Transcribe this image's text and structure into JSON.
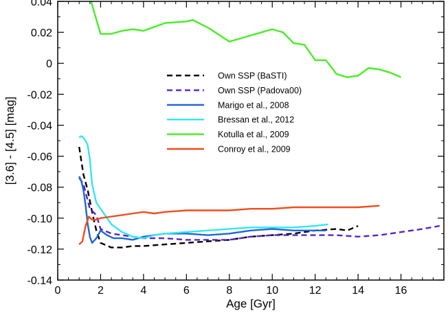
{
  "chart_data": {
    "type": "line",
    "title": "",
    "xlabel": "Age [Gyr]",
    "ylabel": "[3.6] - [4.5] [mag]",
    "xlim": [
      0,
      18
    ],
    "ylim": [
      -0.14,
      0.04
    ],
    "x_ticks": [
      0,
      2,
      4,
      6,
      8,
      10,
      12,
      14,
      16
    ],
    "x_tick_labels": [
      "0",
      "2",
      "4",
      "6",
      "8",
      "10",
      "12",
      "14",
      "16"
    ],
    "y_ticks": [
      -0.14,
      -0.12,
      -0.1,
      -0.08,
      -0.06,
      -0.04,
      -0.02,
      0,
      0.02,
      0.04
    ],
    "y_tick_labels": [
      "-0.14",
      "-0.12",
      "-0.10",
      "-0.08",
      "-0.06",
      "-0.04",
      "-0.02",
      "0",
      "0.02",
      "0.04"
    ],
    "grid": false,
    "legend_position": "center",
    "series": [
      {
        "name": "Own SSP (BaSTI)",
        "color": "#000000",
        "dash": "dashed",
        "x": [
          1.0,
          1.2,
          1.4,
          1.6,
          1.8,
          2.0,
          2.5,
          3.0,
          3.5,
          4.0,
          5.0,
          6.0,
          7.0,
          8.0,
          9.0,
          10.0,
          11.0,
          12.0,
          13.0,
          13.5,
          14.0
        ],
        "y": [
          -0.054,
          -0.072,
          -0.082,
          -0.096,
          -0.108,
          -0.116,
          -0.119,
          -0.119,
          -0.118,
          -0.118,
          -0.117,
          -0.116,
          -0.115,
          -0.114,
          -0.112,
          -0.111,
          -0.11,
          -0.108,
          -0.107,
          -0.108,
          -0.105
        ]
      },
      {
        "name": "Own SSP (Padova00)",
        "color": "#5522cc",
        "dash": "dashed",
        "x": [
          1.0,
          1.2,
          1.5,
          1.8,
          2.0,
          2.5,
          3.0,
          4.0,
          5.0,
          6.0,
          7.0,
          8.0,
          9.0,
          10.0,
          11.0,
          12.0,
          13.0,
          14.0,
          15.0,
          16.0,
          17.0,
          17.8
        ],
        "y": [
          -0.074,
          -0.078,
          -0.094,
          -0.098,
          -0.107,
          -0.11,
          -0.111,
          -0.113,
          -0.113,
          -0.114,
          -0.114,
          -0.114,
          -0.112,
          -0.111,
          -0.111,
          -0.111,
          -0.111,
          -0.112,
          -0.111,
          -0.109,
          -0.107,
          -0.105
        ]
      },
      {
        "name": "Marigo et al., 2008",
        "color": "#1a66d6",
        "dash": "solid",
        "x": [
          1.0,
          1.1,
          1.2,
          1.3,
          1.4,
          1.5,
          1.6,
          1.8,
          2.0,
          2.3,
          2.6,
          3.0,
          3.5,
          4.0,
          5.0,
          6.0,
          7.0,
          8.0,
          9.0,
          10.0,
          11.0,
          12.0,
          12.5
        ],
        "y": [
          -0.073,
          -0.076,
          -0.082,
          -0.092,
          -0.104,
          -0.112,
          -0.116,
          -0.113,
          -0.108,
          -0.111,
          -0.113,
          -0.113,
          -0.114,
          -0.112,
          -0.11,
          -0.11,
          -0.111,
          -0.11,
          -0.108,
          -0.107,
          -0.108,
          -0.108,
          -0.108
        ]
      },
      {
        "name": "Bressan et al., 2012",
        "color": "#33e6f0",
        "dash": "solid",
        "x": [
          1.0,
          1.1,
          1.2,
          1.3,
          1.4,
          1.5,
          1.6,
          1.8,
          2.0,
          2.5,
          3.0,
          3.5,
          4.0,
          4.5,
          5.0,
          6.0,
          7.0,
          8.0,
          9.0,
          10.0,
          11.0,
          12.0,
          12.6
        ],
        "y": [
          -0.048,
          -0.047,
          -0.048,
          -0.05,
          -0.053,
          -0.062,
          -0.078,
          -0.09,
          -0.094,
          -0.104,
          -0.109,
          -0.112,
          -0.113,
          -0.111,
          -0.11,
          -0.109,
          -0.108,
          -0.107,
          -0.106,
          -0.106,
          -0.106,
          -0.105,
          -0.104
        ]
      },
      {
        "name": "Kotulla et al., 2009",
        "color": "#44ee22",
        "dash": "solid",
        "x": [
          1.5,
          1.7,
          2.0,
          2.5,
          3.0,
          3.5,
          4.0,
          5.0,
          6.0,
          6.3,
          7.0,
          8.0,
          9.0,
          10.0,
          10.5,
          11.0,
          11.5,
          12.0,
          12.5,
          13.0,
          13.5,
          14.0,
          14.5,
          15.0,
          15.5,
          16.0
        ],
        "y": [
          0.043,
          0.033,
          0.019,
          0.019,
          0.021,
          0.022,
          0.021,
          0.026,
          0.027,
          0.028,
          0.023,
          0.014,
          0.018,
          0.022,
          0.02,
          0.013,
          0.012,
          0.002,
          0.002,
          -0.007,
          -0.009,
          -0.008,
          -0.003,
          -0.004,
          -0.006,
          -0.009
        ]
      },
      {
        "name": "Conroy et al., 2009",
        "color": "#f04c1e",
        "dash": "solid",
        "x": [
          1.0,
          1.15,
          1.3,
          1.45,
          1.6,
          1.8,
          2.0,
          2.5,
          3.0,
          3.5,
          4.0,
          4.5,
          5.0,
          6.0,
          7.0,
          8.0,
          9.0,
          10.0,
          11.0,
          12.0,
          13.0,
          14.0,
          15.0
        ],
        "y": [
          -0.117,
          -0.115,
          -0.105,
          -0.099,
          -0.101,
          -0.101,
          -0.1,
          -0.099,
          -0.098,
          -0.097,
          -0.096,
          -0.097,
          -0.096,
          -0.095,
          -0.095,
          -0.095,
          -0.094,
          -0.094,
          -0.093,
          -0.093,
          -0.093,
          -0.093,
          -0.092
        ]
      }
    ]
  }
}
